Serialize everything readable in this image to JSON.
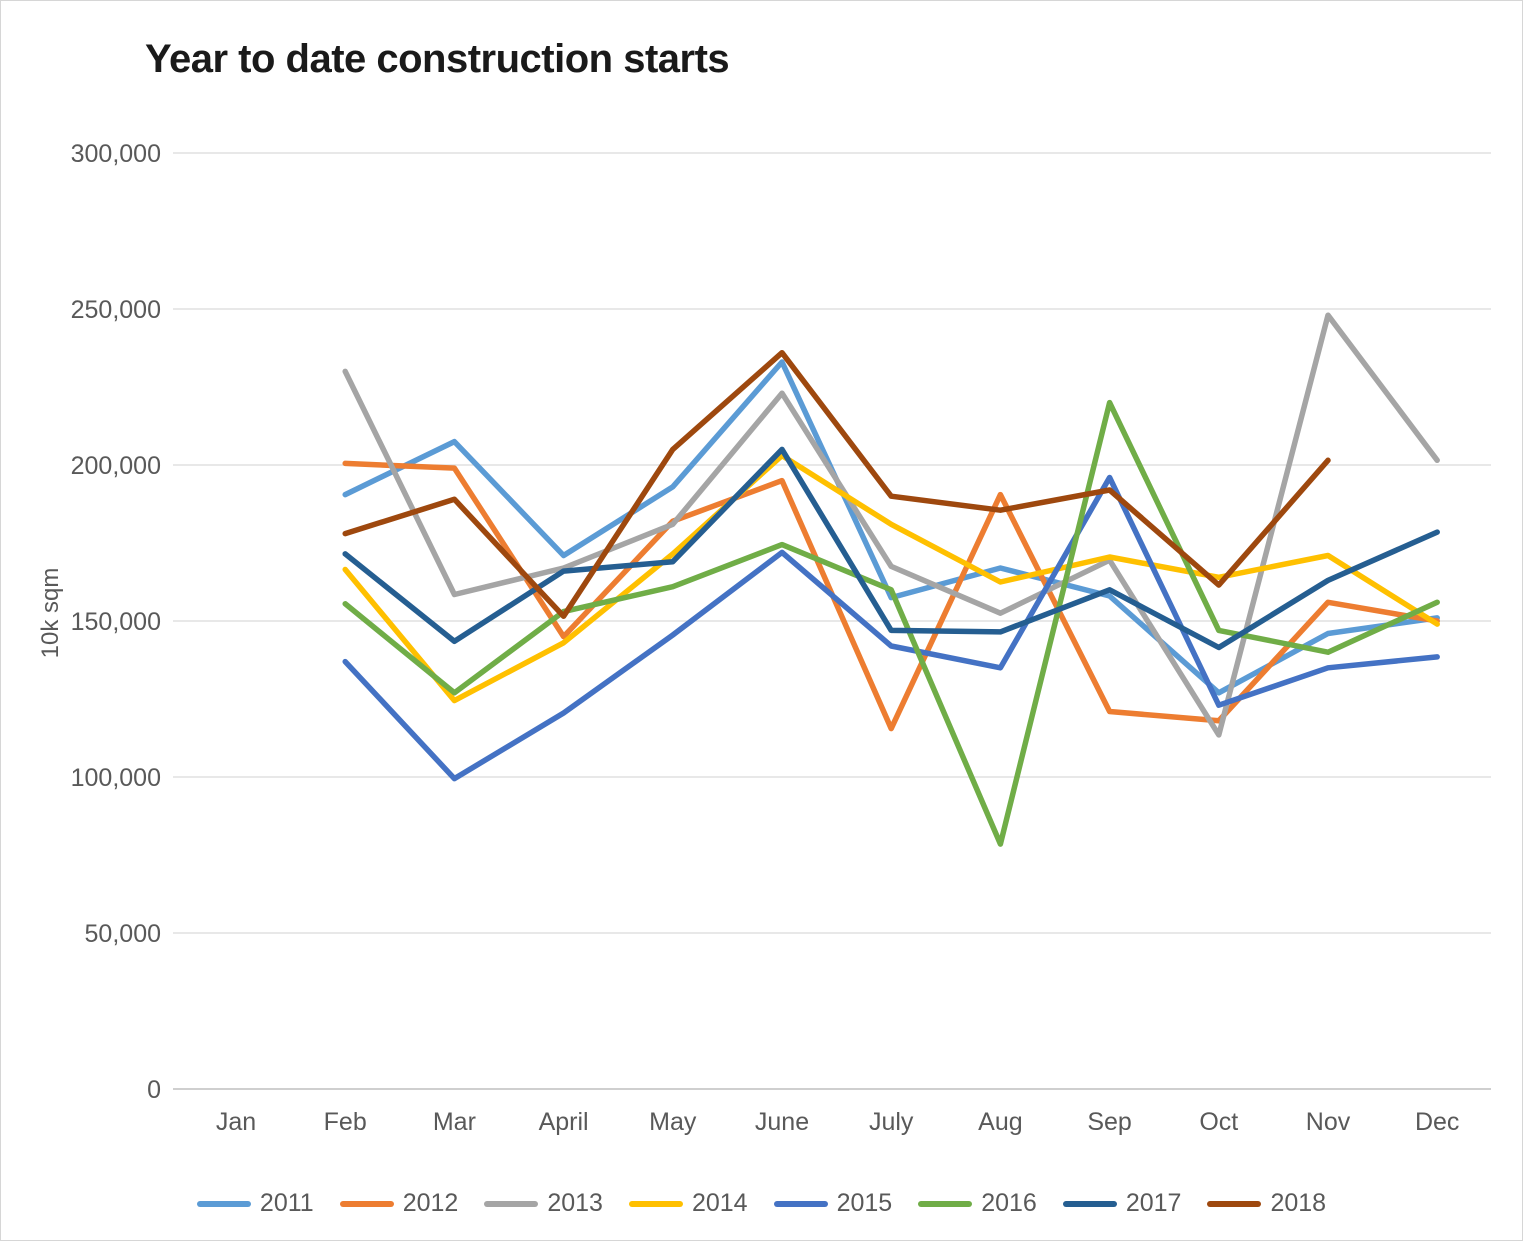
{
  "title": "Year to date construction starts",
  "chart_data": {
    "type": "line",
    "x": [
      "Jan",
      "Feb",
      "Mar",
      "April",
      "May",
      "June",
      "July",
      "Aug",
      "Sep",
      "Oct",
      "Nov",
      "Dec"
    ],
    "ylabel": "10k sqm",
    "ylim": [
      0,
      300000
    ],
    "ytick_step": 50000,
    "ytick_labels": [
      "0",
      "50,000",
      "100,000",
      "150,000",
      "200,000",
      "250,000",
      "300,000"
    ],
    "grid": true,
    "legend_position": "bottom",
    "axis_text_color": "#595959",
    "gridline_color": "#d9d9d9",
    "series": [
      {
        "name": "2011",
        "color": "#5B9BD5",
        "values": [
          null,
          190500,
          207500,
          171000,
          193000,
          233000,
          157500,
          167000,
          158000,
          127000,
          146000,
          151000
        ]
      },
      {
        "name": "2012",
        "color": "#ED7D31",
        "values": [
          null,
          200500,
          199000,
          145000,
          182000,
          195000,
          115500,
          190500,
          121000,
          118000,
          156000,
          150000
        ]
      },
      {
        "name": "2013",
        "color": "#A5A5A5",
        "values": [
          null,
          230000,
          158500,
          167000,
          181000,
          223000,
          167500,
          152500,
          169500,
          113500,
          248000,
          201500
        ]
      },
      {
        "name": "2014",
        "color": "#FFC000",
        "values": [
          null,
          166500,
          124500,
          143000,
          171500,
          203000,
          181000,
          162500,
          170500,
          164000,
          171000,
          149000
        ]
      },
      {
        "name": "2015",
        "color": "#4472C4",
        "values": [
          null,
          137000,
          99500,
          120500,
          145500,
          172000,
          142000,
          135000,
          196000,
          123000,
          135000,
          138500
        ]
      },
      {
        "name": "2016",
        "color": "#70AD47",
        "values": [
          null,
          155500,
          127000,
          153000,
          161000,
          174500,
          160000,
          78500,
          220000,
          147000,
          140000,
          156000
        ]
      },
      {
        "name": "2017",
        "color": "#255E91",
        "values": [
          null,
          171500,
          143500,
          166000,
          169000,
          205000,
          147000,
          146500,
          160000,
          141500,
          163000,
          178500
        ]
      },
      {
        "name": "2018",
        "color": "#9E480E",
        "values": [
          null,
          178000,
          189000,
          151500,
          205000,
          236000,
          190000,
          185500,
          192000,
          161500,
          201500,
          null
        ]
      }
    ]
  }
}
